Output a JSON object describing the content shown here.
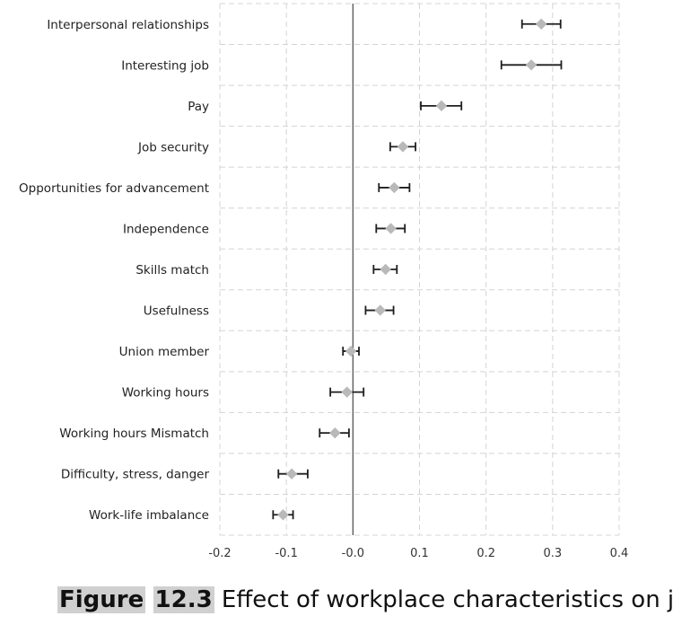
{
  "chart_data": {
    "type": "scatter",
    "orientation": "horizontal",
    "categories": [
      "Interpersonal relationships",
      "Interesting job",
      "Pay",
      "Job security",
      "Opportunities for advancement",
      "Independence",
      "Skills match",
      "Usefulness",
      "Union member",
      "Working hours",
      "Working hours Mismatch",
      "Difficulty, stress, danger",
      "Work-life imbalance"
    ],
    "values": [
      0.283,
      0.268,
      0.133,
      0.075,
      0.062,
      0.057,
      0.049,
      0.041,
      -0.003,
      -0.009,
      -0.027,
      -0.092,
      -0.105
    ],
    "ci_low": [
      0.254,
      0.223,
      0.102,
      0.056,
      0.039,
      0.035,
      0.031,
      0.019,
      -0.015,
      -0.034,
      -0.05,
      -0.112,
      -0.12
    ],
    "ci_high": [
      0.312,
      0.313,
      0.163,
      0.094,
      0.085,
      0.078,
      0.066,
      0.061,
      0.009,
      0.016,
      -0.006,
      -0.068,
      -0.09
    ],
    "xticks": [
      "-0.2",
      "-0.1",
      "-0.0",
      "0.1",
      "0.2",
      "0.3",
      "0.4"
    ],
    "xtick_values": [
      -0.2,
      -0.1,
      0.0,
      0.1,
      0.2,
      0.3,
      0.4
    ],
    "xlim": [
      -0.2,
      0.4
    ],
    "grid": true,
    "reference_line_x": 0,
    "point_color": "#b9b9b9",
    "errorbar_color": "#1e1e1e",
    "grid_color": "#d4d4d4"
  },
  "caption": {
    "label": "Figure",
    "number": "12.3",
    "text": " Effect of workplace characteristics on job"
  }
}
